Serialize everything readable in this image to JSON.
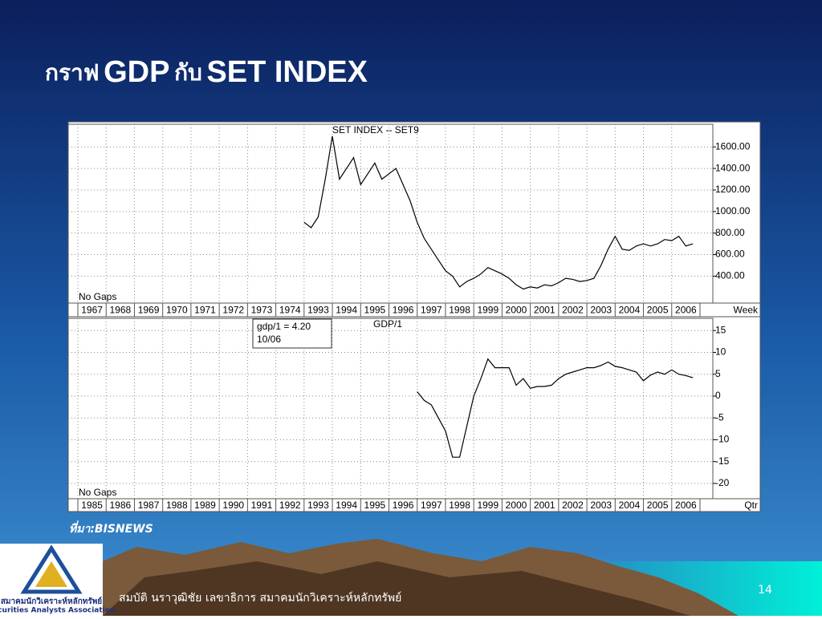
{
  "slide": {
    "title_parts": [
      "กราฟ",
      "GDP",
      "กับ",
      "SET INDEX"
    ],
    "source": "ที่มา:BISNEWS",
    "footer": "สมบัติ นราวุฒิชัย เลขาธิการ สมาคมนักวิเคราะห์หลักทรัพย์",
    "page_number": "14",
    "logo_thai": "สมาคมนักวิเคราะห์หลักทรัพย์",
    "logo_english": "Securities Analysts Association"
  },
  "chart_data": [
    {
      "type": "line",
      "title": "SET  INDEX  --  SET9",
      "note": "No Gaps",
      "x_axis_label": "Week",
      "color": "#000000",
      "grid": true,
      "categories": [
        "1967",
        "1968",
        "1969",
        "1970",
        "1971",
        "1972",
        "1973",
        "1974",
        "1993",
        "1994",
        "1995",
        "1996",
        "1997",
        "1998",
        "1999",
        "2000",
        "2001",
        "2002",
        "2003",
        "2004",
        "2005",
        "2006"
      ],
      "x": [
        1993.0,
        1993.25,
        1993.5,
        1993.75,
        1994.0,
        1994.25,
        1994.5,
        1994.75,
        1995.0,
        1995.25,
        1995.5,
        1995.75,
        1996.0,
        1996.25,
        1996.5,
        1996.75,
        1997.0,
        1997.25,
        1997.5,
        1997.75,
        1998.0,
        1998.25,
        1998.5,
        1998.75,
        1999.0,
        1999.25,
        1999.5,
        1999.75,
        2000.0,
        2000.25,
        2000.5,
        2000.75,
        2001.0,
        2001.25,
        2001.5,
        2001.75,
        2002.0,
        2002.25,
        2002.5,
        2002.75,
        2003.0,
        2003.25,
        2003.5,
        2003.75,
        2004.0,
        2004.25,
        2004.5,
        2004.75,
        2005.0,
        2005.25,
        2005.5,
        2005.75,
        2006.0,
        2006.25,
        2006.5,
        2006.75
      ],
      "values": [
        900,
        850,
        950,
        1300,
        1700,
        1300,
        1400,
        1500,
        1250,
        1350,
        1450,
        1300,
        1350,
        1400,
        1250,
        1100,
        900,
        750,
        650,
        550,
        450,
        400,
        300,
        350,
        380,
        420,
        480,
        450,
        420,
        380,
        320,
        280,
        300,
        290,
        320,
        310,
        340,
        380,
        370,
        350,
        360,
        380,
        500,
        650,
        770,
        650,
        640,
        680,
        700,
        680,
        700,
        740,
        730,
        770,
        680,
        700
      ],
      "ylim": [
        150,
        1810
      ],
      "yticks": [
        {
          "value": 400,
          "label": "400.00"
        },
        {
          "value": 600,
          "label": "600.00"
        },
        {
          "value": 800,
          "label": "800.00"
        },
        {
          "value": 1000,
          "label": "1000.00"
        },
        {
          "value": 1200,
          "label": "1200.00"
        },
        {
          "value": 1400,
          "label": "1400.00"
        },
        {
          "value": 1600,
          "label": "1600.00"
        }
      ]
    },
    {
      "type": "line",
      "title": "GDP/1",
      "note": "No Gaps",
      "x_axis_label": "Qtr",
      "color": "#000000",
      "grid": true,
      "annotation": [
        "gdp/1  =  4.20",
        "10/06"
      ],
      "categories": [
        "1985",
        "1986",
        "1987",
        "1988",
        "1989",
        "1990",
        "1991",
        "1992",
        "1993",
        "1994",
        "1995",
        "1996",
        "1997",
        "1998",
        "1999",
        "2000",
        "2001",
        "2002",
        "2003",
        "2004",
        "2005",
        "2006"
      ],
      "x": [
        1997.0,
        1997.25,
        1997.5,
        1997.75,
        1998.0,
        1998.25,
        1998.5,
        1998.75,
        1999.0,
        1999.25,
        1999.5,
        1999.75,
        2000.0,
        2000.25,
        2000.5,
        2000.75,
        2001.0,
        2001.25,
        2001.5,
        2001.75,
        2002.0,
        2002.25,
        2002.5,
        2002.75,
        2003.0,
        2003.25,
        2003.5,
        2003.75,
        2004.0,
        2004.25,
        2004.5,
        2004.75,
        2005.0,
        2005.25,
        2005.5,
        2005.75,
        2006.0,
        2006.25,
        2006.5,
        2006.75
      ],
      "values": [
        1,
        -1,
        -2,
        -5,
        -8,
        -14,
        -14,
        -7,
        0,
        4,
        8.5,
        6.5,
        6.5,
        6.5,
        2.5,
        4,
        1.8,
        2.2,
        2.2,
        2.5,
        4,
        5,
        5.5,
        6,
        6.5,
        6.5,
        7,
        7.8,
        6.8,
        6.5,
        6,
        5.5,
        3.5,
        4.8,
        5.5,
        5,
        6,
        5,
        4.7,
        4.2
      ],
      "ylim": [
        -23.5,
        17.8
      ],
      "yticks": [
        15,
        10,
        5,
        0,
        -5,
        -10,
        -15,
        -20
      ]
    }
  ]
}
